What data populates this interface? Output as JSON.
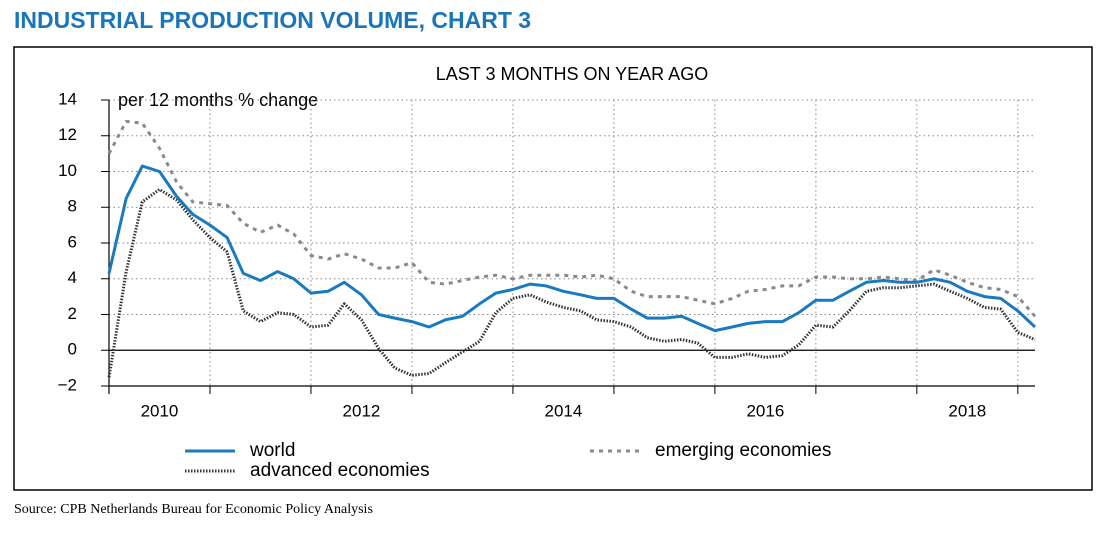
{
  "chart_data": {
    "type": "line",
    "title": "INDUSTRIAL PRODUCTION VOLUME, CHART 3",
    "subtitle": "LAST 3 MONTHS ON YEAR AGO",
    "y_axis_label": "per 12 months % change",
    "source": "Source: CPB Netherlands Bureau for Economic Policy Analysis",
    "x": [
      2010,
      2010.17,
      2010.33,
      2010.5,
      2010.67,
      2010.83,
      2011,
      2011.17,
      2011.33,
      2011.5,
      2011.67,
      2011.83,
      2012,
      2012.17,
      2012.33,
      2012.5,
      2012.67,
      2012.83,
      2013,
      2013.17,
      2013.33,
      2013.5,
      2013.67,
      2013.83,
      2014,
      2014.17,
      2014.33,
      2014.5,
      2014.67,
      2014.83,
      2015,
      2015.17,
      2015.33,
      2015.5,
      2015.67,
      2015.83,
      2016,
      2016.17,
      2016.33,
      2016.5,
      2016.67,
      2016.83,
      2017,
      2017.17,
      2017.33,
      2017.5,
      2017.67,
      2017.83,
      2018,
      2018.17,
      2018.33,
      2018.5,
      2018.67,
      2018.83,
      2019,
      2019.17
    ],
    "series": [
      {
        "name": "world",
        "color": "#1a7abf",
        "style": "solid",
        "values": [
          4.3,
          8.5,
          10.3,
          10.0,
          8.6,
          7.6,
          7.0,
          6.3,
          4.3,
          3.9,
          4.4,
          4.0,
          3.2,
          3.3,
          3.8,
          3.1,
          2.0,
          1.8,
          1.6,
          1.3,
          1.7,
          1.9,
          2.6,
          3.2,
          3.4,
          3.7,
          3.6,
          3.3,
          3.1,
          2.9,
          2.9,
          2.3,
          1.8,
          1.8,
          1.9,
          1.5,
          1.1,
          1.3,
          1.5,
          1.6,
          1.6,
          2.1,
          2.8,
          2.8,
          3.3,
          3.8,
          3.9,
          3.8,
          3.8,
          4.0,
          3.8,
          3.3,
          3.0,
          2.9,
          2.2,
          1.3
        ]
      },
      {
        "name": "advanced economies",
        "color": "#333333",
        "style": "dotted",
        "values": [
          -1.5,
          4.4,
          8.3,
          9.0,
          8.4,
          7.3,
          6.3,
          5.5,
          2.2,
          1.6,
          2.1,
          2.0,
          1.3,
          1.4,
          2.6,
          1.7,
          0.1,
          -1.0,
          -1.4,
          -1.3,
          -0.7,
          -0.1,
          0.5,
          2.1,
          2.9,
          3.1,
          2.7,
          2.4,
          2.2,
          1.7,
          1.6,
          1.3,
          0.7,
          0.5,
          0.6,
          0.4,
          -0.4,
          -0.4,
          -0.2,
          -0.4,
          -0.3,
          0.3,
          1.4,
          1.3,
          2.2,
          3.3,
          3.5,
          3.5,
          3.6,
          3.7,
          3.3,
          2.9,
          2.4,
          2.3,
          1.0,
          0.6
        ]
      },
      {
        "name": "emerging economies",
        "color": "#8a8a8a",
        "style": "dashed",
        "values": [
          11.0,
          12.8,
          12.7,
          11.3,
          9.4,
          8.3,
          8.2,
          8.1,
          7.1,
          6.6,
          7.0,
          6.5,
          5.3,
          5.1,
          5.4,
          5.1,
          4.6,
          4.6,
          4.9,
          3.8,
          3.7,
          3.9,
          4.1,
          4.2,
          4.0,
          4.2,
          4.2,
          4.2,
          4.1,
          4.2,
          4.0,
          3.3,
          3.0,
          3.0,
          3.0,
          2.8,
          2.6,
          2.9,
          3.3,
          3.4,
          3.6,
          3.6,
          4.1,
          4.1,
          4.0,
          4.0,
          4.1,
          4.0,
          3.9,
          4.5,
          4.2,
          3.8,
          3.5,
          3.4,
          3.0,
          1.9
        ]
      }
    ],
    "xlim": [
      2010,
      2019.17
    ],
    "xticks": [
      {
        "value": 2010.5,
        "label": "2010"
      },
      {
        "value": 2012.5,
        "label": "2012"
      },
      {
        "value": 2014.5,
        "label": "2014"
      },
      {
        "value": 2016.5,
        "label": "2016"
      },
      {
        "value": 2018.5,
        "label": "2018"
      }
    ],
    "xgrid": [
      2011,
      2012,
      2013,
      2014,
      2015,
      2016,
      2017,
      2018,
      2019
    ],
    "ylim": [
      -2,
      14
    ],
    "yticks": [
      {
        "value": -2,
        "label": "−2"
      },
      0,
      2,
      4,
      6,
      8,
      10,
      12,
      14
    ],
    "grid": true
  }
}
